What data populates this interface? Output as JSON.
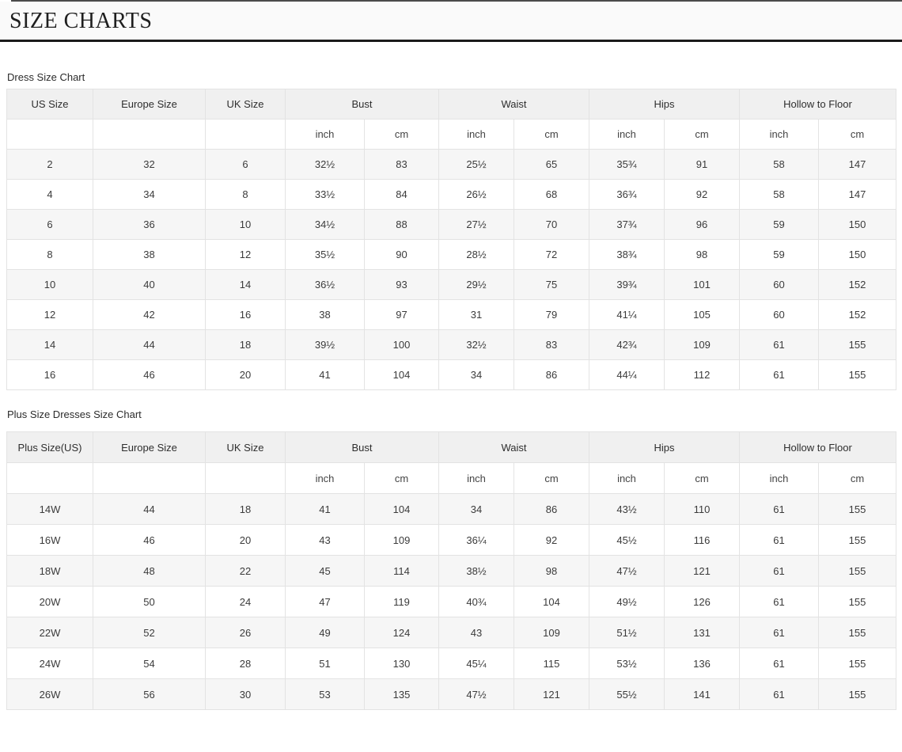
{
  "page": {
    "title": "SIZE CHARTS"
  },
  "colors": {
    "header_bg": "#f0f0f0",
    "row_alt_bg": "#f6f6f6",
    "border": "#e3e3e3",
    "title_rule": "#1b1b1b",
    "text": "#3b3b3b"
  },
  "tables": [
    {
      "label": "Dress Size Chart",
      "size_column_headers": [
        "US Size",
        "Europe Size",
        "UK Size"
      ],
      "measure_groups": [
        {
          "label": "Bust",
          "units": [
            "inch",
            "cm"
          ]
        },
        {
          "label": "Waist",
          "units": [
            "inch",
            "cm"
          ]
        },
        {
          "label": "Hips",
          "units": [
            "inch",
            "cm"
          ]
        },
        {
          "label": "Hollow to Floor",
          "units": [
            "inch",
            "cm"
          ]
        }
      ],
      "rows": [
        [
          "2",
          "32",
          "6",
          "32½",
          "83",
          "25½",
          "65",
          "35¾",
          "91",
          "58",
          "147"
        ],
        [
          "4",
          "34",
          "8",
          "33½",
          "84",
          "26½",
          "68",
          "36¾",
          "92",
          "58",
          "147"
        ],
        [
          "6",
          "36",
          "10",
          "34½",
          "88",
          "27½",
          "70",
          "37¾",
          "96",
          "59",
          "150"
        ],
        [
          "8",
          "38",
          "12",
          "35½",
          "90",
          "28½",
          "72",
          "38¾",
          "98",
          "59",
          "150"
        ],
        [
          "10",
          "40",
          "14",
          "36½",
          "93",
          "29½",
          "75",
          "39¾",
          "101",
          "60",
          "152"
        ],
        [
          "12",
          "42",
          "16",
          "38",
          "97",
          "31",
          "79",
          "41¼",
          "105",
          "60",
          "152"
        ],
        [
          "14",
          "44",
          "18",
          "39½",
          "100",
          "32½",
          "83",
          "42¾",
          "109",
          "61",
          "155"
        ],
        [
          "16",
          "46",
          "20",
          "41",
          "104",
          "34",
          "86",
          "44¼",
          "112",
          "61",
          "155"
        ]
      ]
    },
    {
      "label": "Plus Size Dresses Size Chart",
      "size_column_headers": [
        "Plus Size(US)",
        "Europe Size",
        "UK Size"
      ],
      "measure_groups": [
        {
          "label": "Bust",
          "units": [
            "inch",
            "cm"
          ]
        },
        {
          "label": "Waist",
          "units": [
            "inch",
            "cm"
          ]
        },
        {
          "label": "Hips",
          "units": [
            "inch",
            "cm"
          ]
        },
        {
          "label": "Hollow to Floor",
          "units": [
            "inch",
            "cm"
          ]
        }
      ],
      "rows": [
        [
          "14W",
          "44",
          "18",
          "41",
          "104",
          "34",
          "86",
          "43½",
          "110",
          "61",
          "155"
        ],
        [
          "16W",
          "46",
          "20",
          "43",
          "109",
          "36¼",
          "92",
          "45½",
          "116",
          "61",
          "155"
        ],
        [
          "18W",
          "48",
          "22",
          "45",
          "114",
          "38½",
          "98",
          "47½",
          "121",
          "61",
          "155"
        ],
        [
          "20W",
          "50",
          "24",
          "47",
          "119",
          "40¾",
          "104",
          "49½",
          "126",
          "61",
          "155"
        ],
        [
          "22W",
          "52",
          "26",
          "49",
          "124",
          "43",
          "109",
          "51½",
          "131",
          "61",
          "155"
        ],
        [
          "24W",
          "54",
          "28",
          "51",
          "130",
          "45¼",
          "115",
          "53½",
          "136",
          "61",
          "155"
        ],
        [
          "26W",
          "56",
          "30",
          "53",
          "135",
          "47½",
          "121",
          "55½",
          "141",
          "61",
          "155"
        ]
      ]
    }
  ]
}
